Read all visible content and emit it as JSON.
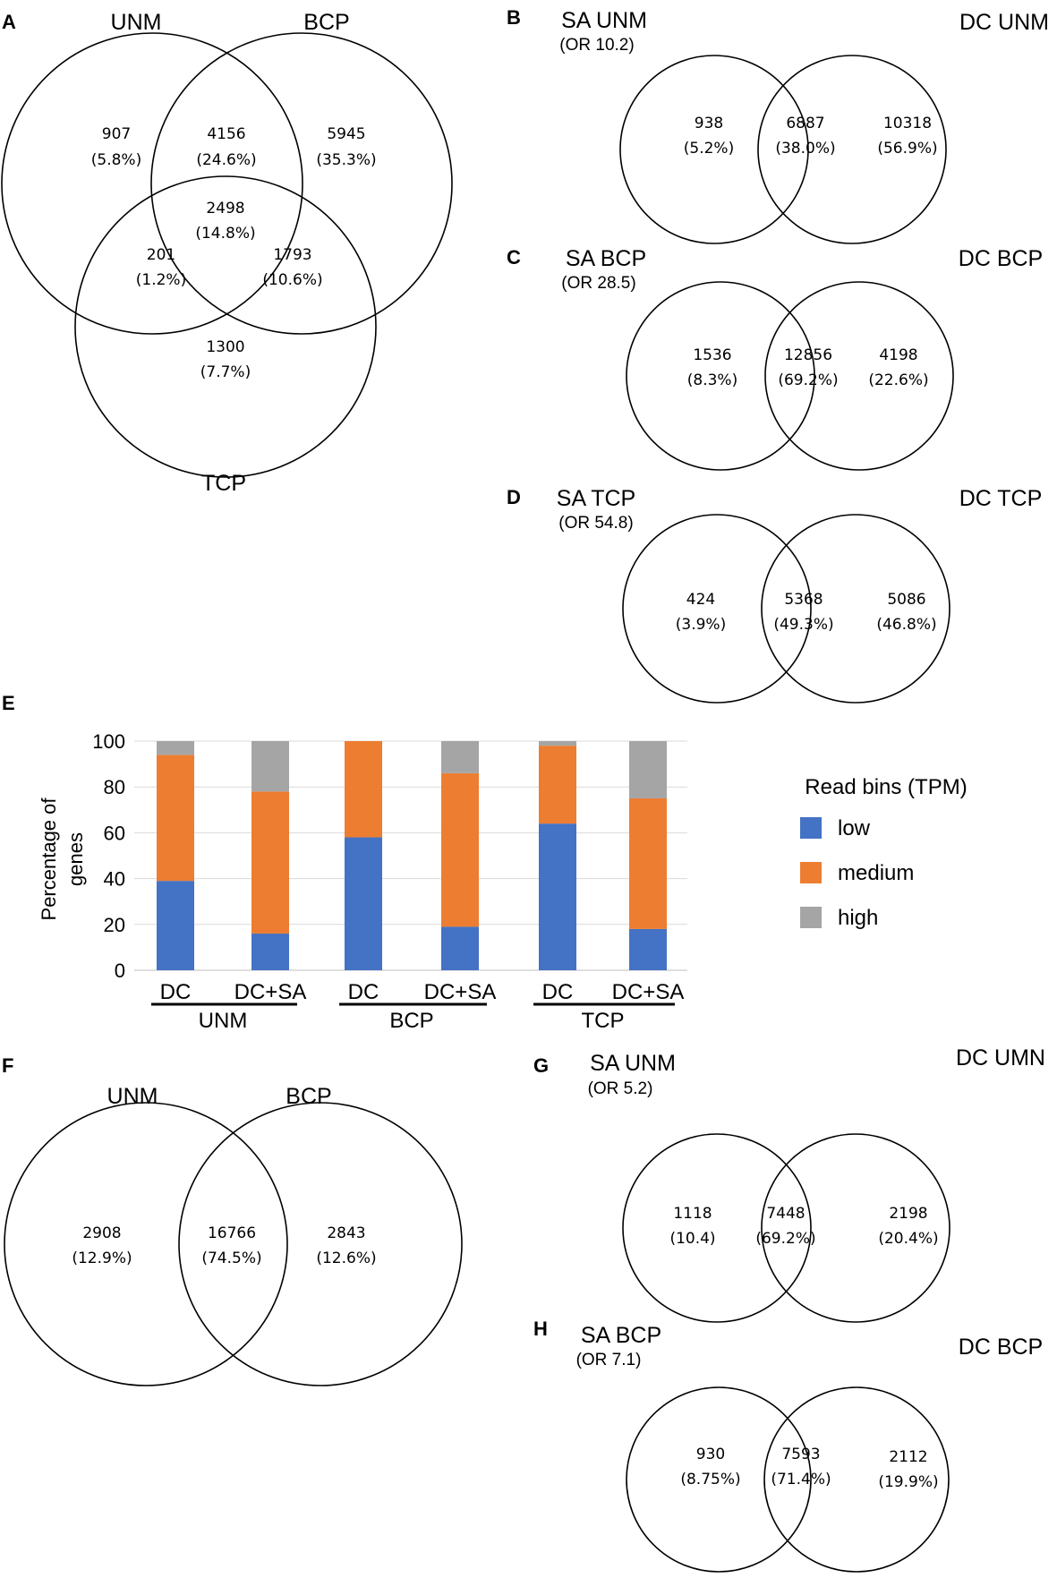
{
  "panels": {
    "A": {
      "label": "A",
      "titles": [
        "UNM",
        "BCP",
        "TCP"
      ],
      "regions": [
        {
          "count": "907",
          "pct": "(5.8%)"
        },
        {
          "count": "4156",
          "pct": "(24.6%)"
        },
        {
          "count": "5945",
          "pct": "(35.3%)"
        },
        {
          "count": "2498",
          "pct": "(14.8%)"
        },
        {
          "count": "201",
          "pct": "(1.2%)"
        },
        {
          "count": "1793",
          "pct": "(10.6%)"
        },
        {
          "count": "1300",
          "pct": "(7.7%)"
        }
      ]
    },
    "B": {
      "label": "B",
      "left_title": "SA UNM",
      "odds": "(OR 10.2)",
      "right_title": "DC UNM",
      "regions": [
        {
          "count": "938",
          "pct": "(5.2%)"
        },
        {
          "count": "6887",
          "pct": "(38.0%)"
        },
        {
          "count": "10318",
          "pct": "(56.9%)"
        }
      ]
    },
    "C": {
      "label": "C",
      "left_title": "SA BCP",
      "odds": "(OR 28.5)",
      "right_title": "DC BCP",
      "regions": [
        {
          "count": "1536",
          "pct": "(8.3%)"
        },
        {
          "count": "12856",
          "pct": "(69.2%)"
        },
        {
          "count": "4198",
          "pct": "(22.6%)"
        }
      ]
    },
    "D": {
      "label": "D",
      "left_title": "SA TCP",
      "odds": "(OR 54.8)",
      "right_title": "DC TCP",
      "regions": [
        {
          "count": "424",
          "pct": "(3.9%)"
        },
        {
          "count": "5368",
          "pct": "(49.3%)"
        },
        {
          "count": "5086",
          "pct": "(46.8%)"
        }
      ]
    },
    "E": {
      "label": "E"
    },
    "F": {
      "label": "F",
      "left_title": "UNM",
      "right_title": "BCP",
      "regions": [
        {
          "count": "2908",
          "pct": "(12.9%)"
        },
        {
          "count": "16766",
          "pct": "(74.5%)"
        },
        {
          "count": "2843",
          "pct": "(12.6%)"
        }
      ]
    },
    "G": {
      "label": "G",
      "left_title": "SA UNM",
      "odds": "(OR 5.2)",
      "right_title": "DC UMN",
      "regions": [
        {
          "count": "1118",
          "pct": "(10.4)"
        },
        {
          "count": "7448",
          "pct": "(69.2%)"
        },
        {
          "count": "2198",
          "pct": "(20.4%)"
        }
      ]
    },
    "H": {
      "label": "H",
      "left_title": "SA BCP",
      "odds": "(OR 7.1)",
      "right_title": "DC BCP",
      "regions": [
        {
          "count": "930",
          "pct": "(8.75%)"
        },
        {
          "count": "7593",
          "pct": "(71.4%)"
        },
        {
          "count": "2112",
          "pct": "(19.9%)"
        }
      ]
    }
  },
  "chart_data": {
    "type": "bar",
    "stacked": true,
    "ylabel_lines": [
      "Percentage of",
      "genes"
    ],
    "ylim": [
      0,
      100
    ],
    "yticks": [
      0,
      20,
      40,
      60,
      80,
      100
    ],
    "grid": true,
    "categories": [
      "DC",
      "DC+SA",
      "DC",
      "DC+SA",
      "DC",
      "DC+SA"
    ],
    "groups": [
      "UNM",
      "BCP",
      "TCP"
    ],
    "legend_title": "Read bins (TPM)",
    "legend_position": "right",
    "series": [
      {
        "name": "low",
        "color": "#4472c4",
        "values": [
          39,
          16,
          58,
          19,
          64,
          18
        ]
      },
      {
        "name": "medium",
        "color": "#ed7d31",
        "values": [
          55,
          62,
          42,
          67,
          34,
          57
        ]
      },
      {
        "name": "high",
        "color": "#a5a5a5",
        "values": [
          6,
          22,
          0,
          14,
          2,
          25
        ]
      }
    ]
  }
}
